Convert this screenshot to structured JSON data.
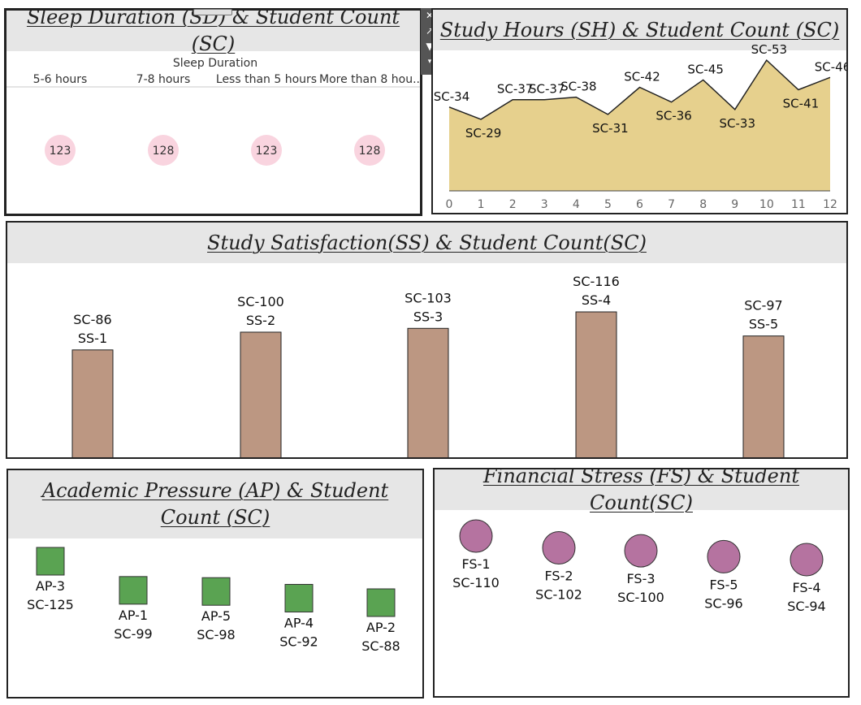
{
  "panels": {
    "sleep": {
      "title": "Sleep Duration (SD) & Student Count (SC)"
    },
    "hours": {
      "title": "Study Hours (SH) & Student Count (SC)"
    },
    "satisfaction": {
      "title": "Study Satisfaction(SS) & Student Count(SC)"
    },
    "pressure": {
      "title": "Academic Pressure (AP) & Student Count (SC)"
    },
    "financial": {
      "title": "Financial Stress (FS) & Student Count(SC)"
    }
  },
  "toolbar": {
    "close_icon": "close-icon",
    "popout_icon": "popout-icon",
    "filter_icon": "filter-icon",
    "menu_icon": "caret-down-icon"
  },
  "chart_data": [
    {
      "id": "sleep",
      "type": "scatter",
      "title": "Sleep Duration (SD) & Student Count (SC)",
      "header": "Sleep Duration",
      "categories": [
        "5-6 hours",
        "7-8 hours",
        "Less than 5 hours",
        "More than 8 hou.."
      ],
      "values": [
        123,
        128,
        123,
        128
      ],
      "colors": {
        "marker": "#f9d4df",
        "text": "#333333"
      }
    },
    {
      "id": "hours",
      "type": "area",
      "title": "Study Hours (SH) & Student Count (SC)",
      "x": [
        0,
        1,
        2,
        3,
        4,
        5,
        6,
        7,
        8,
        9,
        10,
        11,
        12
      ],
      "y": [
        34,
        29,
        37,
        37,
        38,
        31,
        42,
        36,
        45,
        33,
        53,
        41,
        46
      ],
      "labels": [
        "SC-34",
        "SC-29",
        "SC-37",
        "SC-37",
        "SC-38",
        "SC-31",
        "SC-42",
        "SC-36",
        "SC-45",
        "SC-33",
        "SC-53",
        "SC-41",
        "SC-46"
      ],
      "xlim": [
        0,
        12
      ],
      "ylim": [
        0,
        55
      ],
      "colors": {
        "fill": "#e6d08d",
        "line": "#222222"
      }
    },
    {
      "id": "satisfaction",
      "type": "bar",
      "title": "Study Satisfaction(SS) & Student Count(SC)",
      "categories": [
        "SS-1",
        "SS-2",
        "SS-3",
        "SS-4",
        "SS-5"
      ],
      "values": [
        86,
        100,
        103,
        116,
        97
      ],
      "value_labels": [
        "SC-86",
        "SC-100",
        "SC-103",
        "SC-116",
        "SC-97"
      ],
      "ylim": [
        0,
        116
      ],
      "colors": {
        "bar": "#bc9782",
        "edge": "#222222"
      }
    },
    {
      "id": "pressure",
      "type": "scatter",
      "title": "Academic Pressure (AP) & Student Count (SC)",
      "categories": [
        "AP-3",
        "AP-1",
        "AP-5",
        "AP-4",
        "AP-2"
      ],
      "values": [
        125,
        99,
        98,
        92,
        88
      ],
      "value_labels": [
        "SC-125",
        "SC-99",
        "SC-98",
        "SC-92",
        "SC-88"
      ],
      "colors": {
        "marker": "#5aa352"
      }
    },
    {
      "id": "financial",
      "type": "scatter",
      "title": "Financial Stress (FS) & Student Count(SC)",
      "categories": [
        "FS-1",
        "FS-2",
        "FS-3",
        "FS-5",
        "FS-4"
      ],
      "values": [
        110,
        102,
        100,
        96,
        94
      ],
      "value_labels": [
        "SC-110",
        "SC-102",
        "SC-100",
        "SC-96",
        "SC-94"
      ],
      "colors": {
        "marker": "#b573a0"
      }
    }
  ]
}
